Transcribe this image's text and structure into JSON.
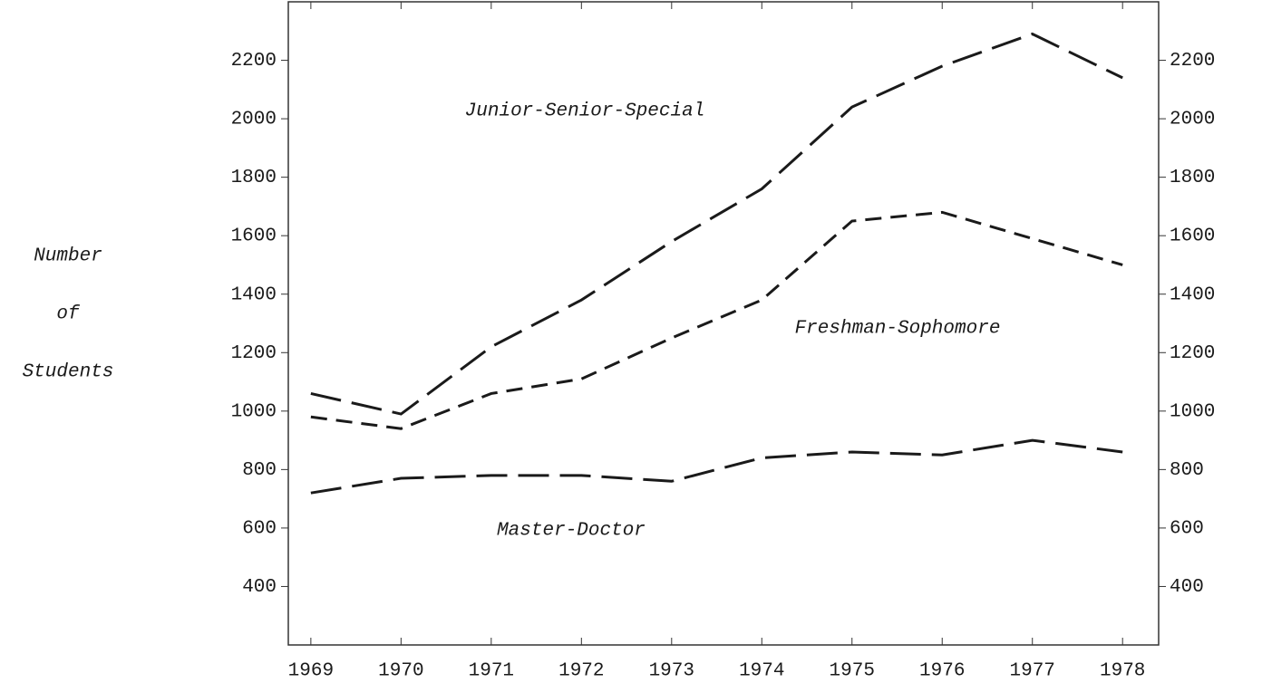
{
  "chart_data": {
    "type": "line",
    "ylabel": [
      "Number",
      "of",
      "Students"
    ],
    "x": [
      1969,
      1970,
      1971,
      1972,
      1973,
      1974,
      1975,
      1976,
      1977,
      1978
    ],
    "xlim": [
      1968.75,
      1978.4
    ],
    "xticks": [
      1969,
      1970,
      1971,
      1972,
      1973,
      1974,
      1975,
      1976,
      1977,
      1978
    ],
    "ylim": [
      200,
      2400
    ],
    "yticks": [
      400,
      600,
      800,
      1000,
      1200,
      1400,
      1600,
      1800,
      2000,
      2200
    ],
    "y2lim": [
      200,
      2400
    ],
    "y2ticks": [
      400,
      600,
      800,
      1000,
      1200,
      1400,
      1600,
      1800,
      2000,
      2200
    ],
    "series": [
      {
        "name": "Junior-Senior-Special",
        "color": "#1a1a1a",
        "dash": "34 12",
        "values": [
          1060,
          990,
          1220,
          1380,
          1580,
          1760,
          2040,
          2180,
          2290,
          2140
        ]
      },
      {
        "name": "Freshman-Sophomore",
        "color": "#1a1a1a",
        "dash": "18 10",
        "values": [
          980,
          940,
          1060,
          1110,
          1250,
          1380,
          1650,
          1680,
          1590,
          1500
        ]
      },
      {
        "name": "Master-Doctor",
        "color": "#1a1a1a",
        "dash": "34 12",
        "values": [
          720,
          770,
          780,
          780,
          760,
          840,
          860,
          850,
          900,
          860
        ]
      }
    ]
  }
}
